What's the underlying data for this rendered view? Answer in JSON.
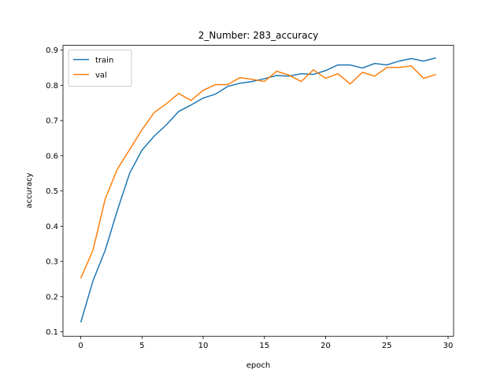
{
  "chart_data": {
    "type": "line",
    "title": "2_Number: 283_accuracy",
    "x_label": "epoch",
    "y_label": "accuracy",
    "x": [
      0,
      1,
      2,
      3,
      4,
      5,
      6,
      7,
      8,
      9,
      10,
      11,
      12,
      13,
      14,
      15,
      16,
      17,
      18,
      19,
      20,
      21,
      22,
      23,
      24,
      25,
      26,
      27,
      28,
      29
    ],
    "series": [
      {
        "name": "train",
        "color": "#1f77b4",
        "values": [
          0.127,
          0.245,
          0.332,
          0.446,
          0.551,
          0.616,
          0.656,
          0.688,
          0.726,
          0.744,
          0.764,
          0.775,
          0.797,
          0.806,
          0.811,
          0.819,
          0.828,
          0.826,
          0.833,
          0.831,
          0.842,
          0.858,
          0.858,
          0.849,
          0.862,
          0.858,
          0.869,
          0.876,
          0.869,
          0.878
        ]
      },
      {
        "name": "val",
        "color": "#ff7f0e",
        "values": [
          0.252,
          0.332,
          0.478,
          0.563,
          0.618,
          0.674,
          0.723,
          0.748,
          0.777,
          0.757,
          0.786,
          0.802,
          0.802,
          0.822,
          0.817,
          0.811,
          0.84,
          0.829,
          0.811,
          0.844,
          0.82,
          0.833,
          0.804,
          0.837,
          0.826,
          0.851,
          0.851,
          0.855,
          0.82,
          0.831
        ]
      }
    ],
    "xlim": [
      -1.45,
      30.45
    ],
    "xticks": [
      0,
      5,
      10,
      15,
      20,
      25,
      30
    ],
    "ylim": [
      0.0874,
      0.9136
    ],
    "yticks": [
      0.1,
      0.2,
      0.3,
      0.4,
      0.5,
      0.6,
      0.7,
      0.8,
      0.9
    ],
    "grid": false,
    "legend": "upper-left"
  }
}
